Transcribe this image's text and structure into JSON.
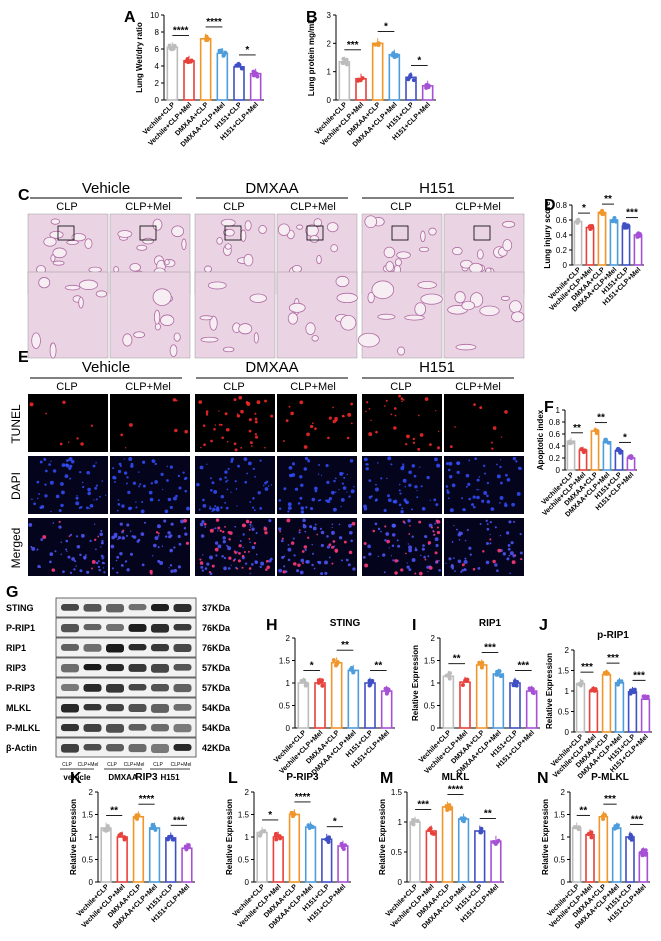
{
  "series_colors": [
    "#bcbcbc",
    "#e8403a",
    "#f0962a",
    "#4d9ddc",
    "#3f4fc4",
    "#a650d6"
  ],
  "chart_data": [
    {
      "panel": "A",
      "type": "bar",
      "title": "",
      "ylabel": "Lung Wet/dry ratio",
      "ylim": [
        0,
        10
      ],
      "yticks": [
        0,
        2,
        4,
        6,
        8,
        10
      ],
      "categories": [
        "Vechile+CLP",
        "Vechile+CLP+Mel",
        "DMXAA+CLP",
        "DMXAA+CLP+Mel",
        "H151+CLP",
        "H151+CLP+Mel"
      ],
      "values": [
        6.2,
        4.6,
        7.2,
        5.5,
        3.9,
        3.1
      ],
      "sig": [
        {
          "from": 0,
          "to": 1,
          "label": "****"
        },
        {
          "from": 2,
          "to": 3,
          "label": "****"
        },
        {
          "from": 4,
          "to": 5,
          "label": "*"
        }
      ]
    },
    {
      "panel": "B",
      "type": "bar",
      "title": "",
      "ylabel": "Lung protein mg/mL",
      "ylim": [
        0,
        3
      ],
      "yticks": [
        0,
        1,
        2,
        3
      ],
      "categories": [
        "Vechile+CLP",
        "Vechile+CLP+Mel",
        "DMXAA+CLP",
        "DMXAA+CLP+Mel",
        "H151+CLP",
        "H151+CLP+Mel"
      ],
      "values": [
        1.35,
        0.75,
        2.0,
        1.6,
        0.8,
        0.5
      ],
      "sig": [
        {
          "from": 0,
          "to": 1,
          "label": "***"
        },
        {
          "from": 2,
          "to": 3,
          "label": "*"
        },
        {
          "from": 4,
          "to": 5,
          "label": "*"
        }
      ]
    },
    {
      "panel": "D",
      "type": "bar",
      "title": "",
      "ylabel": "Lung injury score",
      "ylim": [
        0,
        0.8
      ],
      "yticks": [
        0,
        0.2,
        0.4,
        0.6,
        0.8
      ],
      "categories": [
        "Vechile+CLP",
        "Vechile+CLP+Mel",
        "DMXAA+CLP",
        "DMXAA+CLP+Mel",
        "H151+CLP",
        "H151+CLP+Mel"
      ],
      "values": [
        0.58,
        0.5,
        0.7,
        0.6,
        0.52,
        0.4
      ],
      "sig": [
        {
          "from": 0,
          "to": 1,
          "label": "*"
        },
        {
          "from": 2,
          "to": 3,
          "label": "**"
        },
        {
          "from": 4,
          "to": 5,
          "label": "***"
        }
      ]
    },
    {
      "panel": "F",
      "type": "bar",
      "title": "",
      "ylabel": "Apoptotic index",
      "ylim": [
        0,
        1.0
      ],
      "yticks": [
        0,
        0.2,
        0.4,
        0.6,
        0.8,
        1.0
      ],
      "categories": [
        "Vechile+CLP",
        "Vechile+CLP+Mel",
        "DMXAA+CLP",
        "DMXAA+CLP+Mel",
        "H151+CLP",
        "H151+CLP+Mel"
      ],
      "values": [
        0.48,
        0.33,
        0.65,
        0.47,
        0.32,
        0.2
      ],
      "sig": [
        {
          "from": 0,
          "to": 1,
          "label": "**"
        },
        {
          "from": 2,
          "to": 3,
          "label": "**"
        },
        {
          "from": 4,
          "to": 5,
          "label": "*"
        }
      ]
    },
    {
      "panel": "H",
      "type": "bar",
      "title": "STING",
      "ylabel": "",
      "ylim": [
        0,
        2.0
      ],
      "yticks": [
        0,
        0.5,
        1.0,
        1.5,
        2.0
      ],
      "categories": [
        "Vechile+CLP",
        "Vechile+CLP+Mel",
        "DMXAA+CLP",
        "DMXAA+CLP+Mel",
        "H151+CLP",
        "H151+CLP+Mel"
      ],
      "values": [
        1.0,
        1.0,
        1.45,
        1.28,
        1.0,
        0.82
      ],
      "sig": [
        {
          "from": 0,
          "to": 1,
          "label": "*"
        },
        {
          "from": 2,
          "to": 3,
          "label": "**"
        },
        {
          "from": 4,
          "to": 5,
          "label": "**"
        }
      ]
    },
    {
      "panel": "I",
      "type": "bar",
      "title": "RIP1",
      "ylabel": "Relative Expression",
      "ylim": [
        0,
        2.0
      ],
      "yticks": [
        0,
        0.5,
        1.0,
        1.5,
        2.0
      ],
      "categories": [
        "Vechile+CLP",
        "Vechile+CLP+Mel",
        "DMXAA+CLP",
        "DMXAA+CLP+Mel",
        "H151+CLP",
        "H151+CLP+Mel"
      ],
      "values": [
        1.15,
        1.02,
        1.4,
        1.2,
        1.0,
        0.82
      ],
      "sig": [
        {
          "from": 0,
          "to": 1,
          "label": "**"
        },
        {
          "from": 2,
          "to": 3,
          "label": "***"
        },
        {
          "from": 4,
          "to": 5,
          "label": "***"
        }
      ]
    },
    {
      "panel": "J",
      "type": "bar",
      "title": "p-RIP1",
      "ylabel": "Relative Expression",
      "ylim": [
        0,
        2.0
      ],
      "yticks": [
        0,
        0.5,
        1.0,
        1.5,
        2.0
      ],
      "categories": [
        "Vechile+CLP",
        "Vechile+CLP+Mel",
        "DMXAA+CLP",
        "DMXAA+CLP+Mel",
        "H151+CLP",
        "H151+CLP+Mel"
      ],
      "values": [
        1.18,
        1.0,
        1.4,
        1.2,
        0.98,
        0.8
      ],
      "sig": [
        {
          "from": 0,
          "to": 1,
          "label": "***"
        },
        {
          "from": 2,
          "to": 3,
          "label": "***"
        },
        {
          "from": 4,
          "to": 5,
          "label": "***"
        }
      ]
    },
    {
      "panel": "K",
      "type": "bar",
      "title": "RIP3",
      "ylabel": "Relative Expression",
      "ylim": [
        0,
        2.0
      ],
      "yticks": [
        0,
        0.5,
        1.0,
        1.5,
        2.0
      ],
      "categories": [
        "Vechile+CLP",
        "Vechile+CLP+Mel",
        "DMXAA+CLP",
        "DMXAA+CLP+Mel",
        "H151+CLP",
        "H151+CLP+Mel"
      ],
      "values": [
        1.2,
        1.0,
        1.45,
        1.2,
        0.98,
        0.75
      ],
      "sig": [
        {
          "from": 0,
          "to": 1,
          "label": "**"
        },
        {
          "from": 2,
          "to": 3,
          "label": "****"
        },
        {
          "from": 4,
          "to": 5,
          "label": "***"
        }
      ]
    },
    {
      "panel": "L",
      "type": "bar",
      "title": "P-RIP3",
      "ylabel": "Relative Expression",
      "ylim": [
        0,
        2.0
      ],
      "yticks": [
        0,
        0.5,
        1.0,
        1.5,
        2.0
      ],
      "categories": [
        "Vechile+CLP",
        "Vechile+CLP+Mel",
        "DMXAA+CLP",
        "DMXAA+CLP+Mel",
        "H151+CLP",
        "H151+CLP+Mel"
      ],
      "values": [
        1.1,
        1.0,
        1.5,
        1.22,
        0.95,
        0.8
      ],
      "sig": [
        {
          "from": 0,
          "to": 1,
          "label": "*"
        },
        {
          "from": 2,
          "to": 3,
          "label": "****"
        },
        {
          "from": 4,
          "to": 5,
          "label": "*"
        }
      ]
    },
    {
      "panel": "M",
      "type": "bar",
      "title": "MLKL",
      "ylabel": "Relative Expression",
      "ylim": [
        0,
        1.5
      ],
      "yticks": [
        0,
        0.5,
        1.0,
        1.5
      ],
      "categories": [
        "Vechile+CLP",
        "Vechile+CLP+Mel",
        "DMXAA+CLP",
        "DMXAA+CLP+Mel",
        "H151+CLP",
        "H151+CLP+Mel"
      ],
      "values": [
        1.0,
        0.85,
        1.25,
        1.05,
        0.85,
        0.68
      ],
      "sig": [
        {
          "from": 0,
          "to": 1,
          "label": "***"
        },
        {
          "from": 2,
          "to": 3,
          "label": "****"
        },
        {
          "from": 4,
          "to": 5,
          "label": "**"
        }
      ]
    },
    {
      "panel": "N",
      "type": "bar",
      "title": "P-MLKL",
      "ylabel": "Relative Expression",
      "ylim": [
        0,
        2.0
      ],
      "yticks": [
        0,
        0.5,
        1.0,
        1.5,
        2.0
      ],
      "categories": [
        "Vechile+CLP",
        "Vechile+CLP+Mel",
        "DMXAA+CLP",
        "DMXAA+CLP+Mel",
        "H151+CLP",
        "H151+CLP+Mel"
      ],
      "values": [
        1.2,
        1.05,
        1.45,
        1.2,
        1.0,
        0.65
      ],
      "sig": [
        {
          "from": 0,
          "to": 1,
          "label": "**"
        },
        {
          "from": 2,
          "to": 3,
          "label": "***"
        },
        {
          "from": 4,
          "to": 5,
          "label": "***"
        }
      ]
    }
  ],
  "histology": {
    "panel_letter_c": "C",
    "groups": [
      "Vehicle",
      "DMXAA",
      "H151"
    ],
    "subgroups": [
      "CLP",
      "CLP+Mel"
    ]
  },
  "tunel": {
    "panel_letter_e": "E",
    "groups": [
      "Vehicle",
      "DMXAA",
      "H151"
    ],
    "subgroups": [
      "CLP",
      "CLP+Mel"
    ],
    "rows": [
      "TUNEL",
      "DAPI",
      "Merged"
    ]
  },
  "western": {
    "panel_letter_g": "G",
    "proteins": [
      "STING",
      "P-RIP1",
      "RIP1",
      "RIP3",
      "P-RIP3",
      "MLKL",
      "P-MLKL",
      "β-Actin"
    ],
    "sizes": [
      "37KDa",
      "76KDa",
      "76KDa",
      "57KDa",
      "57KDa",
      "54KDa",
      "54KDa",
      "42KDa"
    ],
    "lane_labels": [
      "CLP",
      "CLP+Mel",
      "CLP",
      "CLP+Mel",
      "CLP",
      "CLP+Mel"
    ],
    "groups": [
      "vehicle",
      "DMXAA",
      "H151"
    ]
  }
}
